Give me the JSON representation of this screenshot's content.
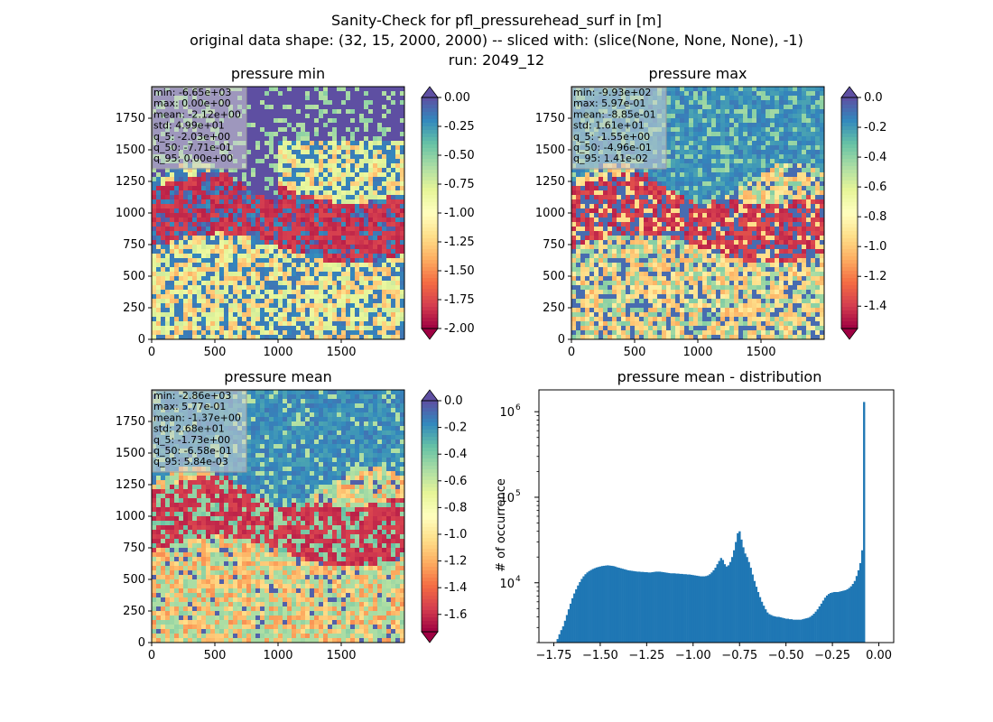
{
  "figure": {
    "suptitle_line1": "Sanity-Check for pfl_pressurehead_surf in [m]",
    "suptitle_line2": "original data shape: (32, 15, 2000, 2000) -- sliced with: (slice(None, None, None), -1)",
    "suptitle_line3": "run: 2049_12"
  },
  "colors": {
    "spectral": [
      "#9e0142",
      "#d53e4f",
      "#f46d43",
      "#fdae61",
      "#fee08b",
      "#ffffbf",
      "#e6f598",
      "#abdda4",
      "#66c2a5",
      "#3288bd",
      "#5e4fa2"
    ],
    "hist_bar": "#1f77b4",
    "stats_box": "#d4d4d4"
  },
  "chart_data": [
    {
      "type": "heatmap",
      "title": "pressure min",
      "xlim": [
        0,
        2000
      ],
      "ylim": [
        0,
        2000
      ],
      "x_ticks": [
        "0",
        "500",
        "1000",
        "1500"
      ],
      "y_ticks": [
        "0",
        "250",
        "500",
        "750",
        "1000",
        "1250",
        "1500",
        "1750"
      ],
      "colorbar": {
        "vmin": -2.0,
        "vmax": 0.0,
        "extend": "both",
        "ticks": [
          "0.00",
          "-0.25",
          "-0.50",
          "-0.75",
          "-1.00",
          "-1.25",
          "-1.50",
          "-1.75",
          "-2.00"
        ]
      },
      "stats": [
        "min: -6.65e+03",
        "max: 0.00e+00",
        "mean: -2.12e+00",
        "std: 4.99e+01",
        "q_5: -2.03e+00",
        "q_50: -7.71e-01",
        "q_95: 0.00e+00"
      ]
    },
    {
      "type": "heatmap",
      "title": "pressure max",
      "xlim": [
        0,
        2000
      ],
      "ylim": [
        0,
        2000
      ],
      "x_ticks": [
        "0",
        "500",
        "1000",
        "1500"
      ],
      "y_ticks": [
        "0",
        "250",
        "500",
        "750",
        "1000",
        "1250",
        "1500",
        "1750"
      ],
      "colorbar": {
        "vmin": -1.55,
        "vmax": 0.0,
        "extend": "both",
        "ticks": [
          "0.0",
          "-0.2",
          "-0.4",
          "-0.6",
          "-0.8",
          "-1.0",
          "-1.2",
          "-1.4"
        ]
      },
      "stats": [
        "min: -9.93e+02",
        "max: 5.97e-01",
        "mean: -8.85e-01",
        "std: 1.61e+01",
        "q_5: -1.55e+00",
        "q_50: -4.96e-01",
        "q_95: 1.41e-02"
      ]
    },
    {
      "type": "heatmap",
      "title": "pressure mean",
      "xlim": [
        0,
        2000
      ],
      "ylim": [
        0,
        2000
      ],
      "x_ticks": [
        "0",
        "500",
        "1000",
        "1500"
      ],
      "y_ticks": [
        "0",
        "250",
        "500",
        "750",
        "1000",
        "1250",
        "1500",
        "1750"
      ],
      "colorbar": {
        "vmin": -1.73,
        "vmax": 0.0,
        "extend": "both",
        "ticks": [
          "0.0",
          "-0.2",
          "-0.4",
          "-0.6",
          "-0.8",
          "-1.0",
          "-1.2",
          "-1.4",
          "-1.6"
        ]
      },
      "stats": [
        "min: -2.86e+03",
        "max: 5.77e-01",
        "mean: -1.37e+00",
        "std: 2.68e+01",
        "q_5: -1.73e+00",
        "q_50: -6.58e-01",
        "q_95: 5.84e-03"
      ]
    },
    {
      "type": "bar",
      "title": "pressure mean - distribution",
      "ylabel": "# of occurrence",
      "xlabel": "",
      "y_scale": "log",
      "xlim": [
        -1.83,
        0.08
      ],
      "ylim": [
        2000,
        1800000
      ],
      "x_ticks": [
        "−1.75",
        "−1.50",
        "−1.25",
        "−1.00",
        "−0.75",
        "−0.50",
        "−0.25",
        "0.00"
      ],
      "y_ticks": [
        {
          "base": "10",
          "exp": "4"
        },
        {
          "base": "10",
          "exp": "5"
        },
        {
          "base": "10",
          "exp": "6"
        }
      ],
      "bins": {
        "x": [
          -1.73,
          -1.72,
          -1.71,
          -1.7,
          -1.69,
          -1.68,
          -1.67,
          -1.66,
          -1.65,
          -1.64,
          -1.63,
          -1.62,
          -1.61,
          -1.6,
          -1.59,
          -1.58,
          -1.57,
          -1.56,
          -1.55,
          -1.54,
          -1.53,
          -1.52,
          -1.51,
          -1.5,
          -1.49,
          -1.48,
          -1.47,
          -1.46,
          -1.45,
          -1.44,
          -1.43,
          -1.42,
          -1.41,
          -1.4,
          -1.39,
          -1.38,
          -1.37,
          -1.36,
          -1.35,
          -1.34,
          -1.33,
          -1.32,
          -1.31,
          -1.3,
          -1.29,
          -1.28,
          -1.27,
          -1.26,
          -1.25,
          -1.24,
          -1.23,
          -1.22,
          -1.21,
          -1.2,
          -1.19,
          -1.18,
          -1.17,
          -1.16,
          -1.15,
          -1.14,
          -1.13,
          -1.12,
          -1.11,
          -1.1,
          -1.09,
          -1.08,
          -1.07,
          -1.06,
          -1.05,
          -1.04,
          -1.03,
          -1.02,
          -1.01,
          -1.0,
          -0.99,
          -0.98,
          -0.97,
          -0.96,
          -0.95,
          -0.94,
          -0.93,
          -0.92,
          -0.91,
          -0.9,
          -0.89,
          -0.88,
          -0.87,
          -0.86,
          -0.85,
          -0.84,
          -0.83,
          -0.82,
          -0.81,
          -0.8,
          -0.79,
          -0.78,
          -0.77,
          -0.76,
          -0.75,
          -0.74,
          -0.73,
          -0.72,
          -0.71,
          -0.7,
          -0.69,
          -0.68,
          -0.67,
          -0.66,
          -0.65,
          -0.64,
          -0.63,
          -0.62,
          -0.61,
          -0.6,
          -0.59,
          -0.58,
          -0.57,
          -0.56,
          -0.55,
          -0.54,
          -0.53,
          -0.52,
          -0.51,
          -0.5,
          -0.49,
          -0.48,
          -0.47,
          -0.46,
          -0.45,
          -0.44,
          -0.43,
          -0.42,
          -0.41,
          -0.4,
          -0.39,
          -0.38,
          -0.37,
          -0.36,
          -0.35,
          -0.34,
          -0.33,
          -0.32,
          -0.31,
          -0.3,
          -0.29,
          -0.28,
          -0.27,
          -0.26,
          -0.25,
          -0.24,
          -0.23,
          -0.22,
          -0.21,
          -0.2,
          -0.19,
          -0.18,
          -0.17,
          -0.16,
          -0.15,
          -0.14,
          -0.13,
          -0.12,
          -0.11,
          -0.1,
          -0.09,
          -0.08,
          -0.07,
          -0.06,
          -0.05,
          -0.04,
          -0.03,
          -0.02,
          -0.01,
          0.0
        ],
        "count": [
          2200,
          2500,
          2800,
          3100,
          3600,
          4200,
          4900,
          5700,
          6600,
          7500,
          8400,
          9300,
          10200,
          11100,
          11900,
          12600,
          13200,
          13700,
          14100,
          14500,
          14800,
          15100,
          15300,
          15500,
          15700,
          15800,
          15900,
          16000,
          15900,
          15800,
          15700,
          15500,
          15200,
          15000,
          14800,
          14600,
          14400,
          14200,
          14000,
          13900,
          13800,
          13700,
          13600,
          13500,
          13500,
          13400,
          13400,
          13300,
          13300,
          13200,
          13200,
          13300,
          13400,
          13500,
          13500,
          13500,
          13400,
          13300,
          13200,
          13100,
          13000,
          12900,
          12900,
          12900,
          12800,
          12800,
          12700,
          12700,
          12600,
          12600,
          12500,
          12500,
          12400,
          12300,
          12200,
          12100,
          12000,
          11900,
          11900,
          11900,
          12000,
          12200,
          12600,
          13200,
          14000,
          15000,
          16500,
          18000,
          19500,
          18500,
          16500,
          15500,
          16000,
          17500,
          20000,
          24000,
          30000,
          38000,
          40000,
          32000,
          26000,
          22000,
          20000,
          17500,
          15000,
          12500,
          10500,
          9000,
          7800,
          6800,
          6000,
          5400,
          4900,
          4500,
          4300,
          4200,
          4100,
          4050,
          4000,
          4000,
          3950,
          3900,
          3850,
          3800,
          3800,
          3750,
          3750,
          3700,
          3700,
          3700,
          3700,
          3700,
          3750,
          3800,
          3850,
          3900,
          4000,
          4150,
          4350,
          4600,
          4900,
          5300,
          5700,
          6200,
          6700,
          7100,
          7400,
          7600,
          7700,
          7800,
          7800,
          7800,
          7900,
          8000,
          8100,
          8200,
          8400,
          8700,
          9100,
          9700,
          10500,
          12000,
          14000,
          17000,
          24000,
          1300000
        ]
      }
    }
  ]
}
